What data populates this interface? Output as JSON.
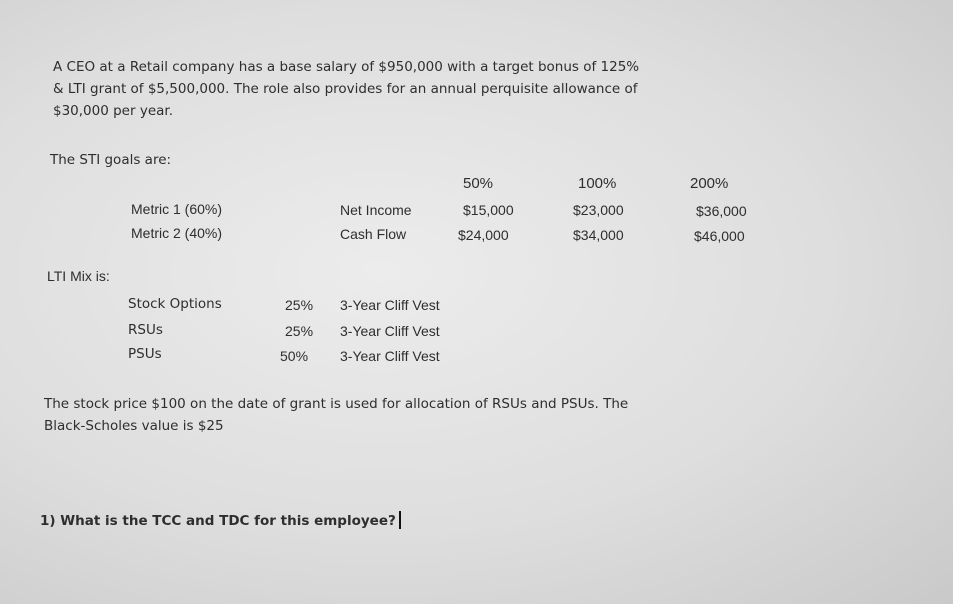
{
  "intro": [
    "A CEO at a Retail company has a base salary of $950,000 with a target bonus of 125%",
    "& LTI grant of $5,500,000. The role also provides for an annual perquisite allowance of",
    "$30,000 per year."
  ],
  "sti": {
    "heading": "The STI goals are:",
    "columns": [
      "50%",
      "100%",
      "200%"
    ],
    "rows": [
      {
        "metric": "Metric 1 (60%)",
        "measure": "Net Income",
        "values": [
          "$15,000",
          "$23,000",
          "$36,000"
        ]
      },
      {
        "metric": "Metric 2 (40%)",
        "measure": "Cash Flow",
        "values": [
          "$24,000",
          "$34,000",
          "$46,000"
        ]
      }
    ]
  },
  "lti": {
    "heading": "LTI Mix is:",
    "rows": [
      {
        "vehicle": "Stock Options",
        "pct": "25%",
        "vest": "3-Year Cliff Vest"
      },
      {
        "vehicle": "RSUs",
        "pct": "25%",
        "vest": "3-Year Cliff Vest"
      },
      {
        "vehicle": "PSUs",
        "pct": "50%",
        "vest": "3-Year Cliff Vest"
      }
    ]
  },
  "stock_note": [
    "The stock price $100 on the date of grant is used for allocation of RSUs and PSUs. The",
    "Black-Scholes value is $25"
  ],
  "question": "1) What is the TCC and TDC for this employee?"
}
